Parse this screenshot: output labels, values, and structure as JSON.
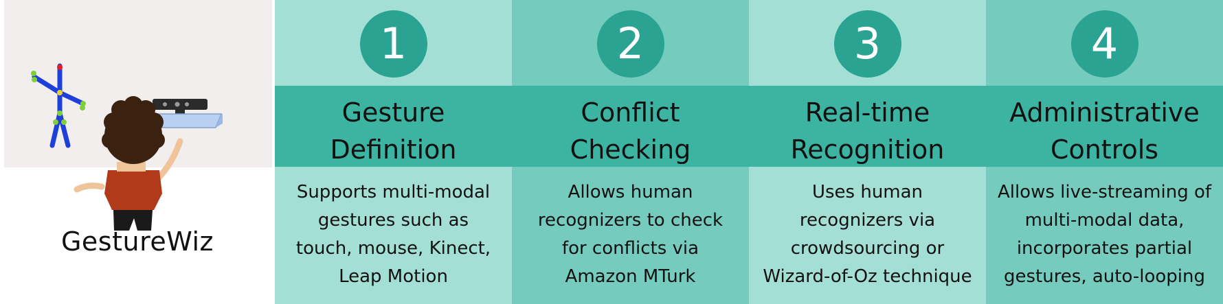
{
  "brand": {
    "name": "GestureWiz"
  },
  "colors": {
    "light": "#a4dfd6",
    "medium": "#76cbbf",
    "band": "#3db3a2",
    "circle": "#2aa393"
  },
  "steps": [
    {
      "number": "1",
      "title_lines": [
        "Gesture",
        "Definition"
      ],
      "desc_lines": [
        "Supports multi-modal",
        "gestures such as",
        "touch, mouse, Kinect,",
        "Leap Motion"
      ]
    },
    {
      "number": "2",
      "title_lines": [
        "Conflict",
        "Checking"
      ],
      "desc_lines": [
        "Allows human",
        "recognizers to check",
        "for conflicts via",
        "Amazon MTurk"
      ]
    },
    {
      "number": "3",
      "title_lines": [
        "Real-time",
        "Recognition"
      ],
      "desc_lines": [
        "Uses human",
        "recognizers via",
        "crowdsourcing or",
        "Wizard-of-Oz technique"
      ]
    },
    {
      "number": "4",
      "title_lines": [
        "Administrative",
        "Controls"
      ],
      "desc_lines": [
        "Allows live-streaming of",
        "multi-modal data,",
        "incorporates partial",
        "gestures, auto-looping"
      ]
    }
  ]
}
